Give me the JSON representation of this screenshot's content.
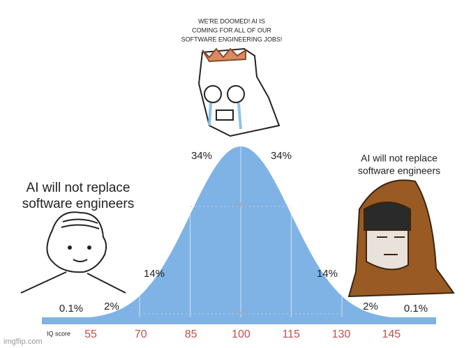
{
  "captions": {
    "top": [
      "WE'RE DOOMED! AI IS",
      "COMING FOR ALL OF OUR",
      "SOFTWARE ENGINEERING JOBS!"
    ],
    "left": [
      "AI will not replace",
      "software engineers"
    ],
    "right": [
      "AI will not replace",
      "software engineers"
    ]
  },
  "curve": {
    "inner": [
      "34%",
      "34%"
    ],
    "inner_total": "68%",
    "middle": [
      "14%",
      "14%"
    ],
    "middle_total": "95%",
    "outer": [
      "2%",
      "2%"
    ],
    "tail": [
      "0.1%",
      "0.1%"
    ],
    "axis_label": "IQ score",
    "ticks": [
      55,
      70,
      85,
      100,
      115,
      130,
      145
    ]
  },
  "watermark": "imgflip.com"
}
